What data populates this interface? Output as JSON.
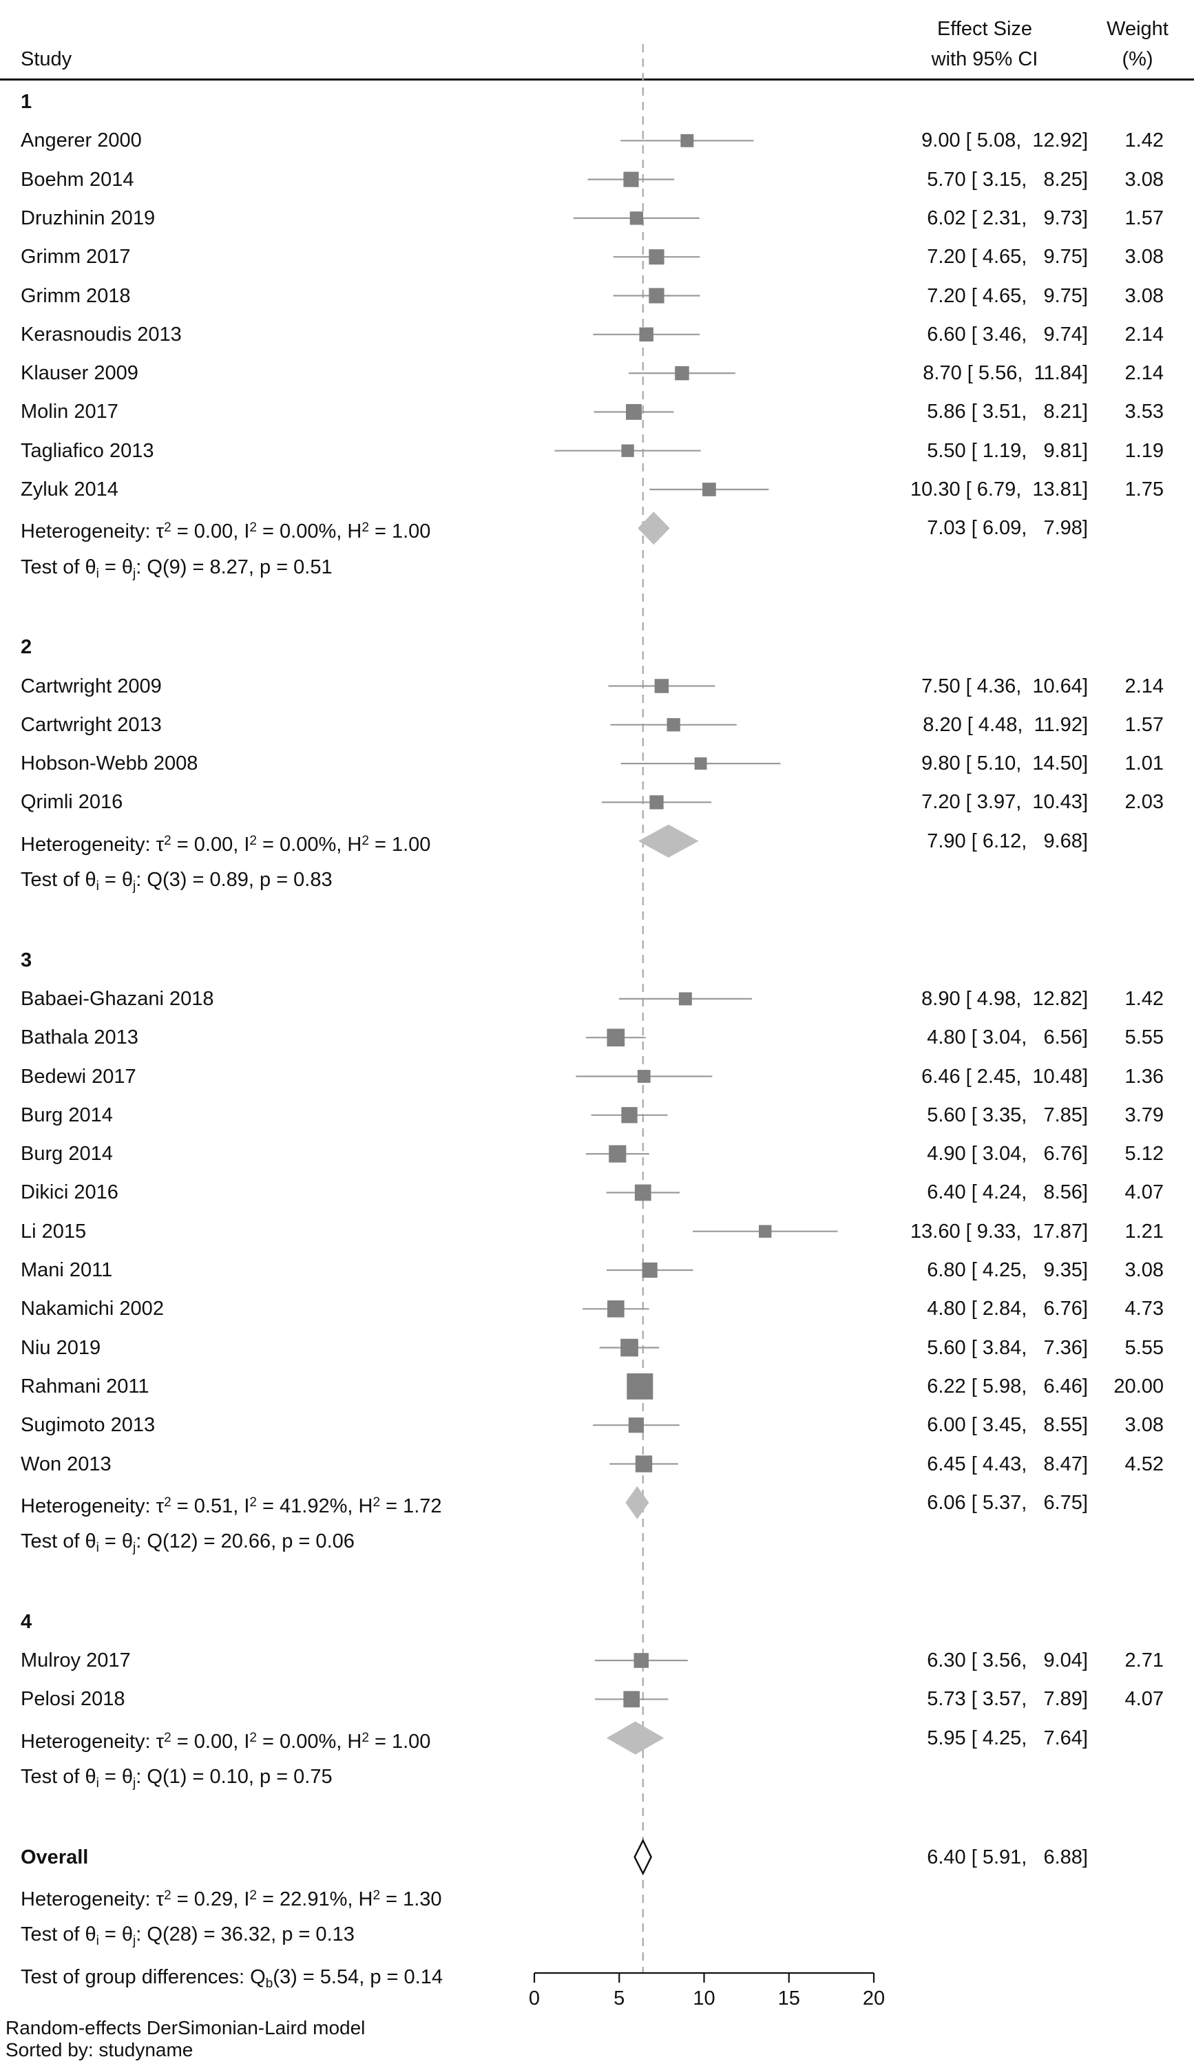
{
  "header": {
    "study": "Study",
    "effect_line1": "Effect Size",
    "effect_line2": "with 95% CI",
    "weight_line1": "Weight",
    "weight_line2": "(%)"
  },
  "footer": {
    "line1": "Random-effects DerSimonian-Laird model",
    "line2": "Sorted by: studyname"
  },
  "chart_data": {
    "type": "forest",
    "xlim": [
      0,
      20
    ],
    "xticks": [
      0,
      5,
      10,
      15,
      20
    ],
    "reference_line": 6.4,
    "groups": [
      {
        "label": "1",
        "studies": [
          {
            "name": "Angerer 2000",
            "es": 9.0,
            "lo": 5.08,
            "hi": 12.92,
            "ci": "9.00 [ 5.08,  12.92]",
            "weight": "1.42"
          },
          {
            "name": "Boehm 2014",
            "es": 5.7,
            "lo": 3.15,
            "hi": 8.25,
            "ci": "5.70 [ 3.15,   8.25]",
            "weight": "3.08"
          },
          {
            "name": "Druzhinin 2019",
            "es": 6.02,
            "lo": 2.31,
            "hi": 9.73,
            "ci": "6.02 [ 2.31,   9.73]",
            "weight": "1.57"
          },
          {
            "name": "Grimm 2017",
            "es": 7.2,
            "lo": 4.65,
            "hi": 9.75,
            "ci": "7.20 [ 4.65,   9.75]",
            "weight": "3.08"
          },
          {
            "name": "Grimm 2018",
            "es": 7.2,
            "lo": 4.65,
            "hi": 9.75,
            "ci": "7.20 [ 4.65,   9.75]",
            "weight": "3.08"
          },
          {
            "name": "Kerasnoudis 2013",
            "es": 6.6,
            "lo": 3.46,
            "hi": 9.74,
            "ci": "6.60 [ 3.46,   9.74]",
            "weight": "2.14"
          },
          {
            "name": "Klauser 2009",
            "es": 8.7,
            "lo": 5.56,
            "hi": 11.84,
            "ci": "8.70 [ 5.56,  11.84]",
            "weight": "2.14"
          },
          {
            "name": "Molin 2017",
            "es": 5.86,
            "lo": 3.51,
            "hi": 8.21,
            "ci": "5.86 [ 3.51,   8.21]",
            "weight": "3.53"
          },
          {
            "name": "Tagliafico 2013",
            "es": 5.5,
            "lo": 1.19,
            "hi": 9.81,
            "ci": "5.50 [ 1.19,   9.81]",
            "weight": "1.19"
          },
          {
            "name": "Zyluk 2014",
            "es": 10.3,
            "lo": 6.79,
            "hi": 13.81,
            "ci": "10.30 [ 6.79,  13.81]",
            "weight": "1.75"
          }
        ],
        "pooled": {
          "es": 7.03,
          "lo": 6.09,
          "hi": 7.98,
          "ci": "7.03 [ 6.09,   7.98]"
        },
        "het": {
          "tau2": "0.00",
          "i2": "0.00%",
          "h2": "1.00"
        },
        "test": {
          "df": "9",
          "q": "8.27",
          "p": "0.51"
        }
      },
      {
        "label": "2",
        "studies": [
          {
            "name": "Cartwright 2009",
            "es": 7.5,
            "lo": 4.36,
            "hi": 10.64,
            "ci": "7.50 [ 4.36,  10.64]",
            "weight": "2.14"
          },
          {
            "name": "Cartwright 2013",
            "es": 8.2,
            "lo": 4.48,
            "hi": 11.92,
            "ci": "8.20 [ 4.48,  11.92]",
            "weight": "1.57"
          },
          {
            "name": "Hobson-Webb 2008",
            "es": 9.8,
            "lo": 5.1,
            "hi": 14.5,
            "ci": "9.80 [ 5.10,  14.50]",
            "weight": "1.01"
          },
          {
            "name": "Qrimli 2016",
            "es": 7.2,
            "lo": 3.97,
            "hi": 10.43,
            "ci": "7.20 [ 3.97,  10.43]",
            "weight": "2.03"
          }
        ],
        "pooled": {
          "es": 7.9,
          "lo": 6.12,
          "hi": 9.68,
          "ci": "7.90 [ 6.12,   9.68]"
        },
        "het": {
          "tau2": "0.00",
          "i2": "0.00%",
          "h2": "1.00"
        },
        "test": {
          "df": "3",
          "q": "0.89",
          "p": "0.83"
        }
      },
      {
        "label": "3",
        "studies": [
          {
            "name": "Babaei-Ghazani 2018",
            "es": 8.9,
            "lo": 4.98,
            "hi": 12.82,
            "ci": "8.90 [ 4.98,  12.82]",
            "weight": "1.42"
          },
          {
            "name": "Bathala 2013",
            "es": 4.8,
            "lo": 3.04,
            "hi": 6.56,
            "ci": "4.80 [ 3.04,   6.56]",
            "weight": "5.55"
          },
          {
            "name": "Bedewi 2017",
            "es": 6.46,
            "lo": 2.45,
            "hi": 10.48,
            "ci": "6.46 [ 2.45,  10.48]",
            "weight": "1.36"
          },
          {
            "name": "Burg 2014",
            "es": 5.6,
            "lo": 3.35,
            "hi": 7.85,
            "ci": "5.60 [ 3.35,   7.85]",
            "weight": "3.79"
          },
          {
            "name": "Burg 2014",
            "es": 4.9,
            "lo": 3.04,
            "hi": 6.76,
            "ci": "4.90 [ 3.04,   6.76]",
            "weight": "5.12"
          },
          {
            "name": "Dikici 2016",
            "es": 6.4,
            "lo": 4.24,
            "hi": 8.56,
            "ci": "6.40 [ 4.24,   8.56]",
            "weight": "4.07"
          },
          {
            "name": "Li 2015",
            "es": 13.6,
            "lo": 9.33,
            "hi": 17.87,
            "ci": "13.60 [ 9.33,  17.87]",
            "weight": "1.21"
          },
          {
            "name": "Mani 2011",
            "es": 6.8,
            "lo": 4.25,
            "hi": 9.35,
            "ci": "6.80 [ 4.25,   9.35]",
            "weight": "3.08"
          },
          {
            "name": "Nakamichi 2002",
            "es": 4.8,
            "lo": 2.84,
            "hi": 6.76,
            "ci": "4.80 [ 2.84,   6.76]",
            "weight": "4.73"
          },
          {
            "name": "Niu 2019",
            "es": 5.6,
            "lo": 3.84,
            "hi": 7.36,
            "ci": "5.60 [ 3.84,   7.36]",
            "weight": "5.55"
          },
          {
            "name": "Rahmani 2011",
            "es": 6.22,
            "lo": 5.98,
            "hi": 6.46,
            "ci": "6.22 [ 5.98,   6.46]",
            "weight": "20.00"
          },
          {
            "name": "Sugimoto 2013",
            "es": 6.0,
            "lo": 3.45,
            "hi": 8.55,
            "ci": "6.00 [ 3.45,   8.55]",
            "weight": "3.08"
          },
          {
            "name": "Won 2013",
            "es": 6.45,
            "lo": 4.43,
            "hi": 8.47,
            "ci": "6.45 [ 4.43,   8.47]",
            "weight": "4.52"
          }
        ],
        "pooled": {
          "es": 6.06,
          "lo": 5.37,
          "hi": 6.75,
          "ci": "6.06 [ 5.37,   6.75]"
        },
        "het": {
          "tau2": "0.51",
          "i2": "41.92%",
          "h2": "1.72"
        },
        "test": {
          "df": "12",
          "q": "20.66",
          "p": "0.06"
        }
      },
      {
        "label": "4",
        "studies": [
          {
            "name": "Mulroy 2017",
            "es": 6.3,
            "lo": 3.56,
            "hi": 9.04,
            "ci": "6.30 [ 3.56,   9.04]",
            "weight": "2.71"
          },
          {
            "name": "Pelosi 2018",
            "es": 5.73,
            "lo": 3.57,
            "hi": 7.89,
            "ci": "5.73 [ 3.57,   7.89]",
            "weight": "4.07"
          }
        ],
        "pooled": {
          "es": 5.95,
          "lo": 4.25,
          "hi": 7.64,
          "ci": "5.95 [ 4.25,   7.64]"
        },
        "het": {
          "tau2": "0.00",
          "i2": "0.00%",
          "h2": "1.00"
        },
        "test": {
          "df": "1",
          "q": "0.10",
          "p": "0.75"
        }
      }
    ],
    "overall": {
      "label": "Overall",
      "es": 6.4,
      "lo": 5.91,
      "hi": 6.88,
      "ci": "6.40 [ 5.91,   6.88]",
      "het": {
        "tau2": "0.29",
        "i2": "22.91%",
        "h2": "1.30"
      },
      "test": {
        "df": "28",
        "q": "36.32",
        "p": "0.13"
      },
      "group_diff": {
        "df": "3",
        "q": "5.54",
        "p": "0.14"
      }
    },
    "colors": {
      "marker": "#808080",
      "ci_line": "#9a9a9a",
      "pooled_diamond": "#bdbdbd",
      "reference": "#a8a8a8",
      "text": "#111111"
    }
  }
}
